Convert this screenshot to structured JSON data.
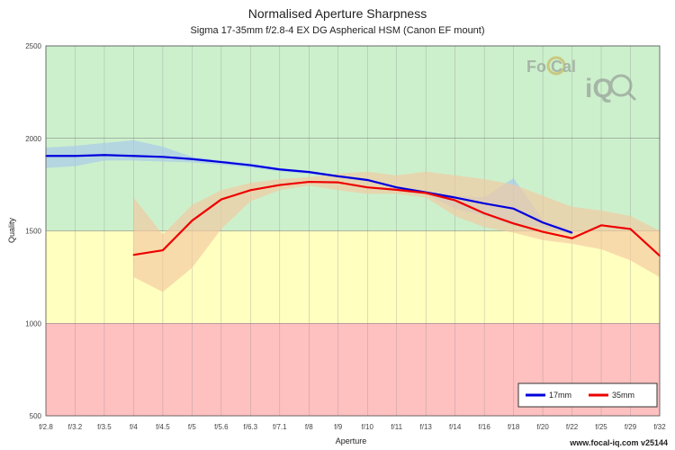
{
  "chart_data": {
    "type": "line",
    "title": "Normalised Aperture Sharpness",
    "subtitle": "Sigma 17-35mm f/2.8-4 EX DG Aspherical HSM (Canon EF mount)",
    "xlabel": "Aperture",
    "ylabel": "Quality",
    "categories": [
      "f/2.8",
      "f/3.2",
      "f/3.5",
      "f/4",
      "f/4.5",
      "f/5",
      "f/5.6",
      "f/6.3",
      "f/7.1",
      "f/8",
      "f/9",
      "f/10",
      "f/11",
      "f/13",
      "f/14",
      "f/16",
      "f/18",
      "f/20",
      "f/22",
      "f/25",
      "f/29",
      "f/32"
    ],
    "ylim": [
      500,
      2500
    ],
    "yticks": [
      500,
      1000,
      1500,
      2000,
      2500
    ],
    "bands": [
      {
        "from": 500,
        "to": 1000,
        "color": "#ffc0c0"
      },
      {
        "from": 1000,
        "to": 1500,
        "color": "#ffffc0"
      },
      {
        "from": 1500,
        "to": 2500,
        "color": "#ccf0cc"
      }
    ],
    "series": [
      {
        "name": "17mm",
        "color": "#0000dd",
        "band_color": "#a8c8ec",
        "values": [
          1905,
          1905,
          1910,
          1905,
          1900,
          1888,
          1872,
          1855,
          1832,
          1818,
          1795,
          1775,
          1735,
          1708,
          1680,
          1648,
          1620,
          1545,
          1490,
          null,
          null,
          null
        ],
        "upper": [
          1950,
          1960,
          1975,
          1990,
          1955,
          1900,
          1880,
          1865,
          1840,
          1825,
          1800,
          1780,
          1740,
          1715,
          1690,
          1680,
          1785,
          1560,
          1500,
          null,
          null,
          null
        ],
        "lower": [
          1840,
          1850,
          1880,
          1880,
          1875,
          1870,
          1858,
          1842,
          1822,
          1808,
          1785,
          1765,
          1725,
          1698,
          1620,
          1580,
          1530,
          1520,
          1480,
          null,
          null,
          null
        ]
      },
      {
        "name": "35mm",
        "color": "#ee0000",
        "band_color": "#f4c8a0",
        "values": [
          null,
          null,
          null,
          1370,
          1395,
          1555,
          1670,
          1720,
          1748,
          1765,
          1762,
          1735,
          1722,
          1705,
          1665,
          1595,
          1540,
          1495,
          1460,
          1530,
          1510,
          1365
        ],
        "upper": [
          null,
          null,
          null,
          1680,
          1480,
          1640,
          1720,
          1760,
          1780,
          1790,
          1810,
          1820,
          1800,
          1820,
          1800,
          1780,
          1750,
          1690,
          1630,
          1610,
          1580,
          1500
        ],
        "lower": [
          null,
          null,
          null,
          1250,
          1170,
          1300,
          1510,
          1660,
          1720,
          1745,
          1720,
          1700,
          1700,
          1680,
          1580,
          1520,
          1490,
          1450,
          1430,
          1400,
          1340,
          1250
        ]
      }
    ],
    "grid": true,
    "legend_position": "bottom-right"
  },
  "watermark": {
    "text_part1": "Fo",
    "text_part2": "Cal",
    "text_part3": "iQ"
  },
  "footer": "www.focal-iq.com  v25144"
}
